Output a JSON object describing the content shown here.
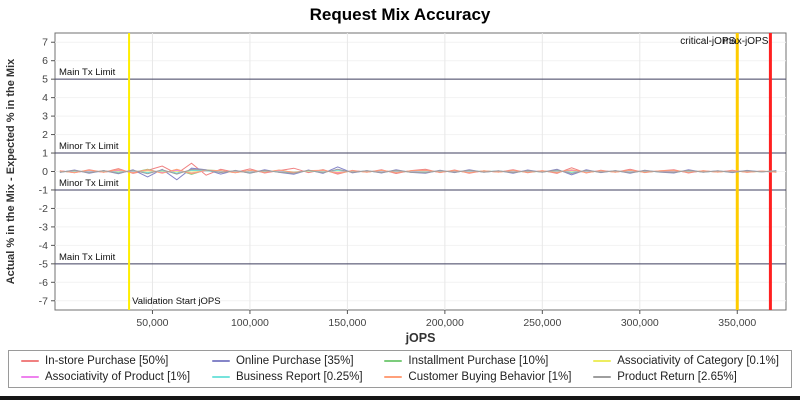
{
  "title": "Request Mix Accuracy",
  "axes": {
    "x_label": "jOPS",
    "y_label": "Actual % in the Mix - Expected % in the Mix",
    "x_ticks": [
      {
        "value": 50000,
        "label": "50,000"
      },
      {
        "value": 100000,
        "label": "100,000"
      },
      {
        "value": 150000,
        "label": "150,000"
      },
      {
        "value": 200000,
        "label": "200,000"
      },
      {
        "value": 250000,
        "label": "250,000"
      },
      {
        "value": 300000,
        "label": "300,000"
      },
      {
        "value": 350000,
        "label": "350,000"
      }
    ],
    "y_ticks": [
      7,
      6,
      5,
      4,
      3,
      2,
      1,
      0,
      -1,
      -2,
      -3,
      -4,
      -5,
      -6,
      -7
    ]
  },
  "chart_data": {
    "type": "line",
    "title": "Request Mix Accuracy",
    "xlabel": "jOPS",
    "ylabel": "Actual % in the Mix - Expected % in the Mix",
    "xlim": [
      0,
      375000
    ],
    "ylim": [
      -7.5,
      7.5
    ],
    "grid": true,
    "legend_position": "bottom",
    "annotations": {
      "h_lines": [
        {
          "y": 5,
          "label": "Main Tx Limit",
          "color": "#3f3f5f"
        },
        {
          "y": 1,
          "label": "Minor Tx Limit",
          "color": "#3f3f5f"
        },
        {
          "y": -1,
          "label": "Minor Tx Limit",
          "color": "#3f3f5f"
        },
        {
          "y": -5,
          "label": "Main Tx Limit",
          "color": "#3f3f5f"
        }
      ],
      "v_lines": [
        {
          "x": 38000,
          "label": "Validation Start jOPS",
          "label_pos": "bottom",
          "color": "#ffee00",
          "width": 2
        },
        {
          "x": 350000,
          "label": "critical-jOPS",
          "label_pos": "top",
          "color": "#ffcc00",
          "width": 3
        },
        {
          "x": 367000,
          "label": "max-jOPS",
          "label_pos": "top",
          "color": "#ff2020",
          "width": 3
        }
      ]
    },
    "x": [
      2500,
      10000,
      17500,
      25000,
      32500,
      40000,
      47500,
      55000,
      62500,
      70000,
      77500,
      85000,
      92500,
      100000,
      107500,
      115000,
      122500,
      130000,
      137500,
      145000,
      152500,
      160000,
      167500,
      175000,
      182500,
      190000,
      197500,
      205000,
      212500,
      220000,
      227500,
      235000,
      242500,
      250000,
      257500,
      265000,
      272500,
      280000,
      287500,
      295000,
      302500,
      310000,
      317500,
      325000,
      332500,
      340000,
      347500,
      355000,
      362500,
      370000
    ],
    "series": [
      {
        "name": "In-store Purchase [50%]",
        "color": "#f08080",
        "values": [
          0.04,
          -0.07,
          0.1,
          -0.04,
          0.15,
          -0.1,
          0.06,
          0.3,
          -0.12,
          0.45,
          -0.2,
          0.12,
          -0.05,
          0.14,
          -0.08,
          0.05,
          0.18,
          -0.06,
          0.1,
          -0.14,
          0.06,
          -0.04,
          0.09,
          -0.11,
          0.05,
          0.12,
          -0.06,
          0.08,
          -0.09,
          0.04,
          -0.03,
          0.1,
          -0.07,
          0.05,
          -0.1,
          0.2,
          -0.08,
          0.07,
          -0.04,
          0.12,
          -0.06,
          0.03,
          0.09,
          -0.08,
          0.05,
          -0.03,
          0.07,
          -0.05,
          0.02,
          -0.04
        ]
      },
      {
        "name": "Online Purchase [35%]",
        "color": "#8585c8",
        "values": [
          -0.05,
          0.08,
          -0.09,
          0.05,
          -0.12,
          0.09,
          -0.3,
          0.12,
          -0.45,
          0.18,
          0.1,
          -0.14,
          0.06,
          -0.1,
          0.09,
          -0.05,
          -0.15,
          0.08,
          -0.1,
          0.25,
          -0.07,
          0.05,
          -0.08,
          0.1,
          -0.05,
          -0.1,
          0.07,
          -0.06,
          0.1,
          -0.04,
          0.04,
          -0.09,
          0.08,
          -0.04,
          0.12,
          -0.18,
          0.09,
          -0.06,
          0.05,
          -0.1,
          0.07,
          -0.03,
          -0.08,
          0.09,
          -0.04,
          0.04,
          -0.06,
          0.06,
          -0.02,
          0.05
        ]
      },
      {
        "name": "Installment Purchase [10%]",
        "color": "#7ccc7c",
        "values": [
          0.02,
          -0.04,
          0.05,
          -0.03,
          0.06,
          -0.05,
          0.12,
          -0.08,
          0.1,
          -0.15,
          0.08,
          0.04,
          -0.06,
          0.05,
          -0.03,
          0.07,
          -0.05,
          0.04,
          0.06,
          -0.08,
          0.03,
          -0.02,
          0.05,
          -0.04,
          0.02,
          0.06,
          -0.03,
          0.04,
          -0.05,
          0.03,
          -0.02,
          0.04,
          -0.03,
          0.02,
          -0.04,
          0.08,
          -0.05,
          0.03,
          -0.02,
          0.05,
          -0.03,
          0.02,
          0.04,
          -0.03,
          0.02,
          -0.02,
          0.03,
          -0.02,
          0.01,
          -0.02
        ]
      },
      {
        "name": "Associativity of Category [0.1%]",
        "color": "#eded60",
        "values": [
          0.01,
          -0.02,
          0.02,
          -0.01,
          0.03,
          -0.02,
          0.04,
          -0.03,
          0.02,
          -0.04,
          0.03,
          0.01,
          -0.02,
          0.02,
          -0.01,
          0.03,
          -0.02,
          0.01,
          0.02,
          -0.03,
          0.01,
          -0.01,
          0.02,
          -0.02,
          0.01,
          0.02,
          -0.01,
          0.01,
          -0.02,
          0.01,
          -0.01,
          0.02,
          -0.01,
          0.01,
          -0.02,
          0.03,
          -0.02,
          0.01,
          -0.01,
          0.02,
          -0.01,
          0.01,
          0.02,
          -0.01,
          0.01,
          -0.01,
          0.01,
          -0.01,
          0.0,
          0.01
        ]
      },
      {
        "name": "Associativity of Product [1%]",
        "color": "#ee82ee",
        "values": [
          0.03,
          -0.05,
          0.04,
          -0.03,
          0.06,
          -0.04,
          0.08,
          -0.06,
          0.07,
          -0.1,
          0.05,
          0.03,
          -0.05,
          0.04,
          -0.03,
          0.05,
          -0.04,
          0.03,
          0.05,
          -0.06,
          0.03,
          -0.02,
          0.04,
          -0.03,
          0.02,
          0.05,
          -0.03,
          0.03,
          -0.04,
          0.02,
          -0.02,
          0.03,
          -0.02,
          0.02,
          -0.03,
          0.06,
          -0.04,
          0.03,
          -0.02,
          0.04,
          -0.02,
          0.02,
          0.03,
          -0.03,
          0.02,
          -0.02,
          0.03,
          -0.02,
          0.01,
          -0.02
        ]
      },
      {
        "name": "Business Report [0.25%]",
        "color": "#76e3dc",
        "values": [
          -0.02,
          0.03,
          -0.03,
          0.02,
          -0.04,
          0.03,
          -0.06,
          0.04,
          -0.08,
          0.06,
          0.04,
          -0.03,
          0.03,
          -0.04,
          0.03,
          -0.02,
          -0.05,
          0.03,
          -0.03,
          0.07,
          -0.02,
          0.02,
          -0.03,
          0.03,
          -0.02,
          -0.03,
          0.02,
          -0.02,
          0.03,
          -0.01,
          0.02,
          -0.03,
          0.02,
          -0.02,
          0.04,
          -0.05,
          0.03,
          -0.02,
          0.02,
          -0.03,
          0.02,
          -0.01,
          -0.03,
          0.03,
          -0.02,
          0.01,
          -0.02,
          0.02,
          -0.01,
          0.02
        ]
      },
      {
        "name": "Customer Buying Behavior [1%]",
        "color": "#ffa07a",
        "values": [
          0.03,
          -0.06,
          0.07,
          -0.04,
          0.09,
          -0.07,
          0.1,
          -0.09,
          0.12,
          -0.12,
          0.07,
          0.05,
          -0.07,
          0.06,
          -0.04,
          0.08,
          -0.06,
          0.05,
          0.07,
          -0.09,
          0.04,
          -0.03,
          0.06,
          -0.05,
          0.03,
          0.07,
          -0.04,
          0.05,
          -0.06,
          0.03,
          -0.03,
          0.05,
          -0.04,
          0.03,
          -0.05,
          0.09,
          -0.06,
          0.04,
          -0.03,
          0.06,
          -0.04,
          0.03,
          0.05,
          -0.04,
          0.03,
          -0.03,
          0.04,
          -0.03,
          0.02,
          -0.03
        ]
      },
      {
        "name": "Product Return [2.65%]",
        "color": "#9e9e9e",
        "values": [
          -0.04,
          0.06,
          -0.07,
          0.05,
          -0.09,
          0.07,
          -0.12,
          0.09,
          -0.14,
          0.11,
          0.08,
          -0.06,
          0.05,
          -0.08,
          0.06,
          -0.04,
          -0.1,
          0.06,
          -0.07,
          0.12,
          -0.05,
          0.04,
          -0.06,
          0.07,
          -0.04,
          -0.07,
          0.05,
          -0.04,
          0.07,
          -0.03,
          0.03,
          -0.06,
          0.05,
          -0.03,
          0.08,
          -0.11,
          0.06,
          -0.04,
          0.04,
          -0.07,
          0.05,
          -0.02,
          -0.05,
          0.06,
          -0.03,
          0.03,
          -0.04,
          0.04,
          -0.02,
          0.03
        ]
      }
    ],
    "colors": {
      "plot_border": "#707070",
      "grid": "#e8e8e8",
      "tick_text": "#444444"
    }
  }
}
